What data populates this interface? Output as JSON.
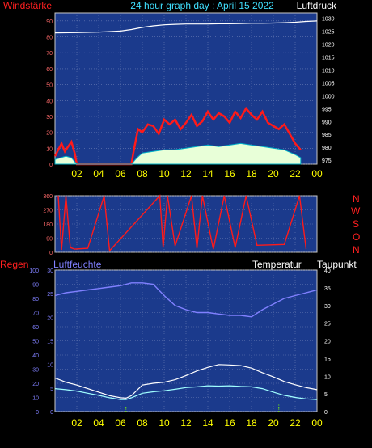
{
  "header": {
    "title": "24 hour graph day : April 15 2022",
    "left_label": "Windstärke",
    "right_label": "Luftdruck"
  },
  "panel2": {
    "right_labels": [
      "N",
      "W",
      "S",
      "O",
      "N"
    ]
  },
  "panel3": {
    "left_label": "Regen",
    "left2_label": "Luftfeuchte",
    "mid_label": "Temperatur",
    "right_label": "Taupunkt"
  },
  "colors": {
    "background": "#000000",
    "plot_bg": "#1b3a8c",
    "grid": "#6c7fb6",
    "wind_speed": "#ff1a1a",
    "wind_gust_fill": "#e8ffd8",
    "wind_avg": "#00b0c8",
    "pressure": "#ffffff",
    "direction": "#ff1a1a",
    "humidity": "#8080ff",
    "temperature": "#ffffff",
    "dewpoint": "#a0ffff",
    "rain": "#80ff00",
    "axis_hour_labels": "#ffff00",
    "wind_axis": "#ff6a6a",
    "direction_label": "#ff2020",
    "humidity_axis": "#8080ff",
    "right_axis": "#ffffff",
    "title_color": "#40e0ff"
  },
  "chart_data": [
    {
      "type": "line",
      "title": "24 hour graph day : April 15 2022",
      "x_ticks": [
        "02",
        "04",
        "06",
        "08",
        "10",
        "12",
        "14",
        "16",
        "18",
        "20",
        "22",
        "00"
      ],
      "y_left_label": "Windstärke",
      "y_left_ticks": [
        0,
        10,
        20,
        30,
        40,
        50,
        60,
        70,
        80,
        90
      ],
      "y_left_lim": [
        0,
        95
      ],
      "y_right_label": "Luftdruck",
      "y_right_ticks": [
        975,
        980,
        985,
        990,
        995,
        1000,
        1005,
        1010,
        1015,
        1020,
        1025,
        1030
      ],
      "y_right_lim": [
        973.5,
        1032
      ],
      "series": [
        {
          "name": "Luftdruck",
          "axis": "right",
          "x": [
            0,
            2,
            4,
            6,
            7,
            8,
            9,
            10,
            11,
            12,
            13,
            14,
            15,
            16,
            17,
            18,
            19,
            20,
            21,
            22,
            23,
            24
          ],
          "values": [
            1024.3,
            1024.4,
            1024.6,
            1025.0,
            1025.6,
            1026.4,
            1027.0,
            1027.4,
            1027.6,
            1027.7,
            1027.7,
            1027.7,
            1027.8,
            1027.8,
            1027.9,
            1028.0,
            1028.0,
            1028.1,
            1028.2,
            1028.4,
            1028.7,
            1028.9
          ]
        },
        {
          "name": "Wind",
          "axis": "left",
          "x": [
            0,
            0.3,
            0.6,
            0.9,
            1.2,
            1.5,
            1.8,
            2.0,
            7.0,
            7.2,
            7.6,
            8,
            8.5,
            9,
            9.5,
            10,
            10.5,
            11,
            11.5,
            12,
            12.5,
            13,
            13.5,
            14,
            14.5,
            15,
            15.5,
            16,
            16.5,
            17,
            17.5,
            18,
            18.5,
            19,
            19.5,
            20,
            20.5,
            21,
            21.5,
            22,
            22.5
          ],
          "values": [
            5,
            9,
            13,
            8,
            11,
            14,
            7,
            0,
            0,
            8,
            22,
            20,
            25,
            24,
            19,
            28,
            25,
            28,
            22,
            26,
            31,
            24,
            27,
            33,
            28,
            32,
            30,
            26,
            33,
            29,
            35,
            31,
            28,
            33,
            26,
            24,
            22,
            25,
            19,
            13,
            9
          ]
        },
        {
          "name": "Windmittel",
          "axis": "left",
          "x": [
            0,
            0.5,
            1,
            1.5,
            2,
            7,
            7.5,
            8,
            9,
            10,
            11,
            12,
            13,
            14,
            15,
            16,
            17,
            18,
            19,
            20,
            21,
            22,
            22.5
          ],
          "values": [
            3,
            4,
            5,
            4,
            0,
            0,
            4,
            7,
            8,
            9,
            9,
            10,
            11,
            12,
            11,
            12,
            13,
            12,
            11,
            10,
            9,
            6,
            4
          ]
        }
      ]
    },
    {
      "type": "line",
      "title": "",
      "x_ticks": [
        "02",
        "04",
        "06",
        "08",
        "10",
        "12",
        "14",
        "16",
        "18",
        "20",
        "22",
        "00"
      ],
      "y_ticks": [
        0,
        90,
        180,
        270,
        360
      ],
      "y_lim": [
        0,
        360
      ],
      "right_labels": [
        "N",
        "W",
        "S",
        "O",
        "N"
      ],
      "series": [
        {
          "name": "",
          "x": [
            0.3,
            0.6,
            1.0,
            1.4,
            1.8,
            3.0,
            4.5,
            5.0,
            9.6,
            9.9,
            10.3,
            11.0,
            12.5,
            13.0,
            13.5,
            14.5,
            15.5,
            16.5,
            17.5,
            18.5,
            21.0,
            22.4,
            23.0
          ],
          "values": [
            360,
            15,
            360,
            30,
            20,
            25,
            360,
            10,
            360,
            30,
            360,
            40,
            360,
            25,
            360,
            20,
            360,
            30,
            360,
            45,
            50,
            360,
            20
          ]
        }
      ]
    },
    {
      "type": "line",
      "title": "",
      "x_ticks": [
        "02",
        "04",
        "06",
        "08",
        "10",
        "12",
        "14",
        "16",
        "18",
        "20",
        "22",
        "00"
      ],
      "y_left_label": "Regen",
      "y_left_ticks": [
        0,
        10,
        20,
        30,
        40,
        50,
        60,
        70,
        80,
        90,
        100
      ],
      "y_left_lim": [
        0,
        100
      ],
      "y_left2_label": "Luftfeuchte",
      "y_left2_ticks": [
        0,
        5,
        10,
        15,
        20,
        25,
        30
      ],
      "y_left2_lim": [
        0,
        30
      ],
      "y_right_label": "Taupunkt",
      "y_right_ticks": [
        0,
        5,
        10,
        15,
        20,
        25,
        30,
        35,
        40
      ],
      "y_right_lim": [
        0,
        40
      ],
      "series": [
        {
          "name": "Luftfeuchte",
          "axis": "left",
          "x": [
            0,
            1,
            2,
            3,
            4,
            5,
            6,
            7,
            8,
            9,
            10,
            11,
            12,
            13,
            14,
            15,
            16,
            17,
            18,
            19,
            20,
            21,
            22,
            23,
            24
          ],
          "values": [
            82,
            84,
            85,
            86,
            87,
            88,
            89,
            91,
            91,
            90,
            82,
            75,
            72,
            70,
            70,
            69,
            68,
            68,
            67,
            72,
            76,
            80,
            82,
            84,
            86
          ]
        },
        {
          "name": "Temperatur",
          "axis": "right",
          "x": [
            0,
            1,
            2,
            3,
            4,
            5,
            6,
            6.5,
            7,
            8,
            9,
            10,
            11,
            12,
            13,
            14,
            15,
            16,
            17,
            18,
            19,
            20,
            21,
            22,
            23,
            24
          ],
          "values": [
            9.5,
            8.3,
            7.5,
            6.5,
            5.5,
            4.5,
            3.9,
            3.8,
            4.5,
            7.5,
            8.0,
            8.3,
            9.0,
            10.2,
            11.5,
            12.5,
            13.3,
            13.2,
            13.0,
            12.3,
            11.0,
            9.8,
            8.5,
            7.6,
            6.8,
            6.2
          ]
        },
        {
          "name": "Taupunkt",
          "axis": "right",
          "x": [
            0,
            1,
            2,
            3,
            4,
            5,
            6,
            6.5,
            7,
            8,
            9,
            10,
            11,
            12,
            13,
            14,
            15,
            16,
            17,
            18,
            19,
            20,
            21,
            22,
            23,
            24
          ],
          "values": [
            6.5,
            6.2,
            5.8,
            5.2,
            4.6,
            3.9,
            3.4,
            3.4,
            3.9,
            5.2,
            5.6,
            5.9,
            6.3,
            6.8,
            7.0,
            7.3,
            7.2,
            7.3,
            7.1,
            7.0,
            6.5,
            5.5,
            4.6,
            4.0,
            3.6,
            3.4
          ]
        },
        {
          "name": "Regen",
          "axis": "left",
          "x": [
            6.5,
            20.5
          ],
          "values": [
            4,
            5
          ]
        }
      ]
    }
  ]
}
